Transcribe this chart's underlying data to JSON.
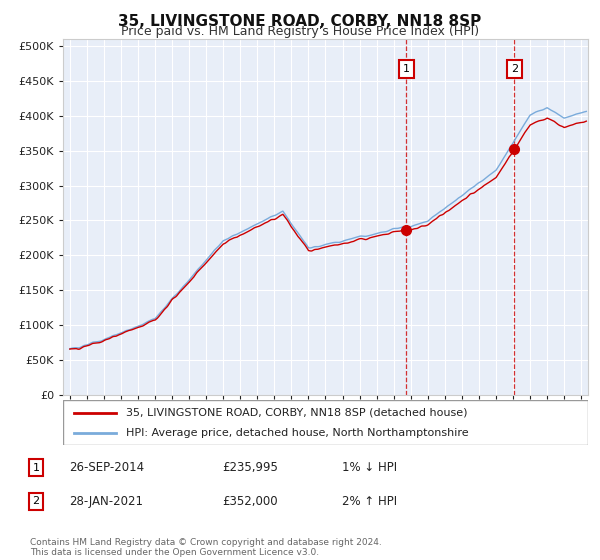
{
  "title": "35, LIVINGSTONE ROAD, CORBY, NN18 8SP",
  "subtitle": "Price paid vs. HM Land Registry's House Price Index (HPI)",
  "yticks": [
    0,
    50000,
    100000,
    150000,
    200000,
    250000,
    300000,
    350000,
    400000,
    450000,
    500000
  ],
  "ylim": [
    0,
    510000
  ],
  "xlim_start": 1994.6,
  "xlim_end": 2025.4,
  "background_color": "#ffffff",
  "plot_bg_color": "#e8eef8",
  "grid_color": "#ffffff",
  "hpi_color": "#7aabdb",
  "price_color": "#cc0000",
  "sale1_year": 2014.74,
  "sale1_price": 235995,
  "sale2_year": 2021.08,
  "sale2_price": 352000,
  "legend_label1": "35, LIVINGSTONE ROAD, CORBY, NN18 8SP (detached house)",
  "legend_label2": "HPI: Average price, detached house, North Northamptonshire",
  "annotation1_date": "26-SEP-2014",
  "annotation1_price": "£235,995",
  "annotation1_change": "1% ↓ HPI",
  "annotation2_date": "28-JAN-2021",
  "annotation2_price": "£352,000",
  "annotation2_change": "2% ↑ HPI",
  "footnote": "Contains HM Land Registry data © Crown copyright and database right 2024.\nThis data is licensed under the Open Government Licence v3.0."
}
